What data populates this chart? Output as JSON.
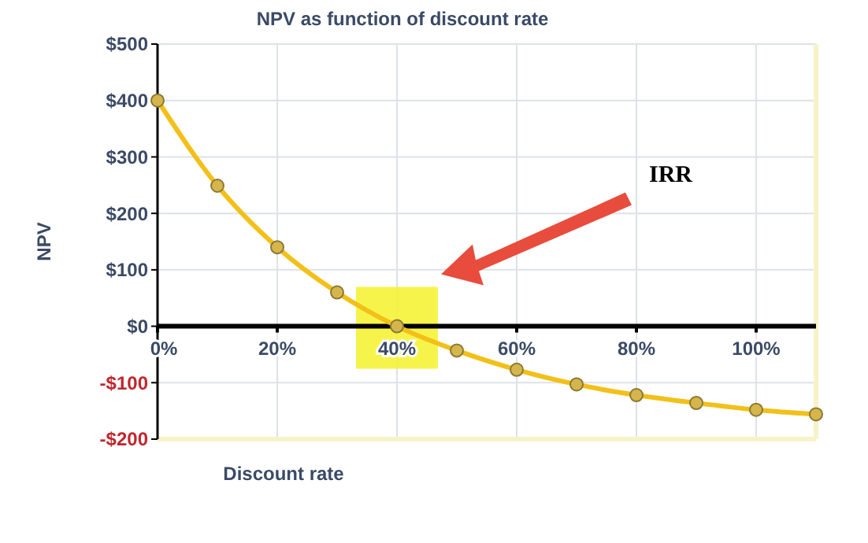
{
  "chart_data": {
    "type": "line",
    "title": "NPV as function of discount rate",
    "xlabel": "Discount rate",
    "ylabel": "NPV",
    "x": [
      0,
      10,
      20,
      30,
      40,
      50,
      60,
      70,
      80,
      90,
      100,
      110
    ],
    "series": [
      {
        "color": "#f2c019",
        "values": [
          400,
          249,
          140,
          60,
          0,
          -43,
          -77,
          -103,
          -122,
          -136,
          -148,
          -156
        ]
      }
    ],
    "xlim": [
      0,
      110
    ],
    "xticks": [
      {
        "value": 0,
        "label": "0%"
      },
      {
        "value": 20,
        "label": "20%"
      },
      {
        "value": 40,
        "label": "40%"
      },
      {
        "value": 60,
        "label": "60%"
      },
      {
        "value": 80,
        "label": "80%"
      },
      {
        "value": 100,
        "label": "100%"
      }
    ],
    "ylim": [
      -200,
      500
    ],
    "yticks": [
      {
        "value": -200,
        "label": "-$200"
      },
      {
        "value": -100,
        "label": "-$100"
      },
      {
        "value": 0,
        "label": "$0"
      },
      {
        "value": 100,
        "label": "$100"
      },
      {
        "value": 200,
        "label": "$200"
      },
      {
        "value": 300,
        "label": "$300"
      },
      {
        "value": 400,
        "label": "$400"
      },
      {
        "value": 500,
        "label": "$500"
      }
    ],
    "annotations": [
      "IRR"
    ],
    "grid": true,
    "marker": "circle",
    "line_style": "solid"
  }
}
